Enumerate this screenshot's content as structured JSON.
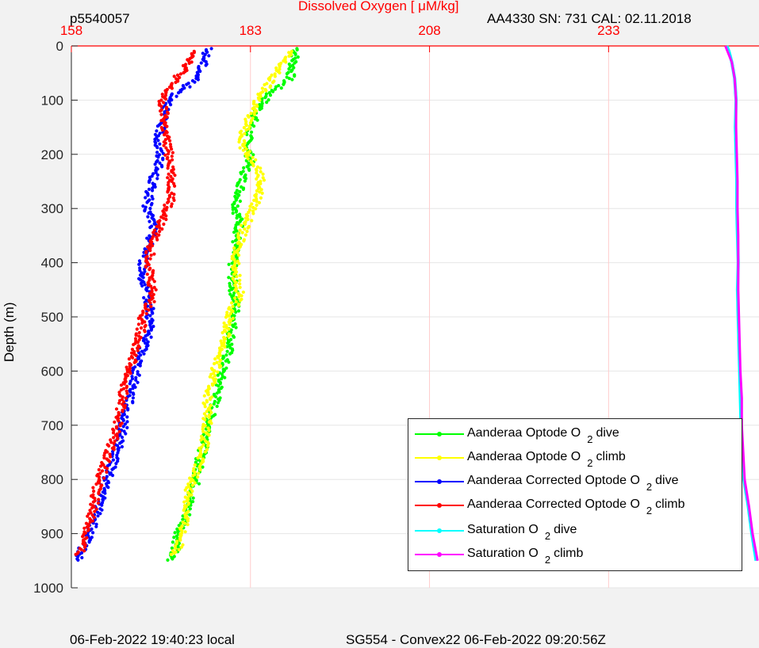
{
  "header": {
    "profile_id": "p5540057",
    "top_right": "AA4330   SN: 731   CAL: 02.11.2018",
    "footer_left": "06-Feb-2022 19:40:23 local",
    "footer_center": "SG554 - Convex22 06-Feb-2022 09:20:56Z"
  },
  "colors": {
    "axis_red": "#ff0000",
    "dive_optode": "#00ff00",
    "climb_optode": "#ffff00",
    "dive_corrected": "#0000ff",
    "climb_corrected": "#ff0000",
    "sat_dive": "#00ffff",
    "sat_climb": "#ff00ff"
  },
  "chart_data": {
    "type": "scatter",
    "title": "Dissolved Oxygen [   μM/kg]",
    "xlabel": "Dissolved Oxygen [   μM/kg]",
    "ylabel": "Depth (m)",
    "xlim": [
      158,
      254
    ],
    "ylim": [
      0,
      1000
    ],
    "y_reversed": true,
    "x_ticks": [
      158,
      183,
      208,
      233
    ],
    "y_ticks": [
      0,
      100,
      200,
      300,
      400,
      500,
      600,
      700,
      800,
      900,
      1000
    ],
    "grid": true,
    "legend_position": "bottom-right",
    "legend": [
      {
        "label": "Aanderaa Optode O",
        "sub": "2",
        "suffix": "dive",
        "color": "#00ff00"
      },
      {
        "label": "Aanderaa Optode O",
        "sub": "2",
        "suffix": "climb",
        "color": "#ffff00"
      },
      {
        "label": "Aanderaa Corrected Optode O",
        "sub": "2",
        "suffix": "dive",
        "color": "#0000ff"
      },
      {
        "label": "Aanderaa Corrected Optode O",
        "sub": "2",
        "suffix": "climb",
        "color": "#ff0000"
      },
      {
        "label": "Saturation O",
        "sub": "2",
        "suffix": "dive",
        "color": "#00ffff"
      },
      {
        "label": "Saturation O",
        "sub": "2",
        "suffix": "climb",
        "color": "#ff00ff"
      }
    ],
    "series": [
      {
        "key": "dive_optode",
        "color": "#00ff00",
        "depth": [
          5,
          30,
          60,
          90,
          120,
          150,
          180,
          210,
          240,
          270,
          300,
          330,
          360,
          400,
          440,
          480,
          520,
          560,
          600,
          640,
          680,
          720,
          760,
          800,
          840,
          870,
          900,
          930,
          950
        ],
        "values": [
          189.5,
          189.0,
          188.5,
          185.5,
          184.0,
          183.0,
          182.5,
          183.0,
          182.0,
          181.5,
          181.0,
          181.5,
          181.0,
          180.5,
          180.5,
          181.0,
          180.5,
          180.0,
          179.0,
          178.5,
          177.5,
          177.0,
          176.0,
          175.5,
          174.5,
          174.0,
          173.0,
          172.5,
          171.5
        ]
      },
      {
        "key": "climb_optode",
        "color": "#ffff00",
        "depth": [
          10,
          40,
          70,
          100,
          130,
          160,
          190,
          220,
          250,
          280,
          310,
          340,
          380,
          420,
          460,
          500,
          540,
          580,
          620,
          660,
          700,
          740,
          780,
          820,
          860,
          900,
          940
        ],
        "values": [
          188.5,
          187.0,
          185.5,
          184.0,
          183.0,
          182.0,
          182.0,
          184.0,
          184.5,
          184.0,
          183.0,
          182.0,
          181.0,
          181.0,
          181.5,
          180.0,
          179.5,
          178.5,
          177.5,
          177.0,
          177.0,
          176.5,
          175.5,
          174.5,
          174.0,
          173.5,
          172.5
        ]
      },
      {
        "key": "dive_corrected",
        "color": "#0000ff",
        "depth": [
          5,
          30,
          60,
          90,
          120,
          150,
          180,
          210,
          240,
          270,
          300,
          330,
          360,
          400,
          440,
          480,
          520,
          560,
          600,
          640,
          680,
          720,
          760,
          800,
          840,
          870,
          900,
          930,
          950
        ],
        "values": [
          177.0,
          176.5,
          175.5,
          172.5,
          171.0,
          170.5,
          170.0,
          170.5,
          169.5,
          169.0,
          168.5,
          169.5,
          169.0,
          168.0,
          168.0,
          169.0,
          169.0,
          168.0,
          167.0,
          166.5,
          165.5,
          165.0,
          164.0,
          163.0,
          162.0,
          161.5,
          160.5,
          159.5,
          159.0
        ]
      },
      {
        "key": "climb_corrected",
        "color": "#ff0000",
        "depth": [
          10,
          40,
          70,
          100,
          130,
          160,
          190,
          220,
          250,
          280,
          310,
          340,
          380,
          420,
          460,
          500,
          540,
          580,
          620,
          660,
          700,
          740,
          780,
          820,
          860,
          900,
          940
        ],
        "values": [
          175.5,
          174.0,
          172.0,
          170.5,
          171.0,
          171.0,
          171.5,
          172.0,
          172.0,
          172.0,
          171.0,
          170.0,
          169.0,
          169.0,
          169.5,
          168.0,
          167.5,
          166.5,
          165.5,
          165.0,
          164.5,
          163.5,
          162.5,
          161.5,
          161.0,
          160.0,
          159.0
        ]
      },
      {
        "key": "sat_dive",
        "color": "#00ffff",
        "depth": [
          0,
          10,
          30,
          60,
          100,
          150,
          200,
          250,
          300,
          350,
          400,
          450,
          500,
          550,
          600,
          650,
          700,
          750,
          800,
          850,
          900,
          950
        ],
        "values": [
          249.5,
          249.8,
          250.2,
          250.6,
          250.8,
          250.7,
          250.8,
          250.9,
          250.9,
          251.0,
          251.1,
          251.0,
          251.1,
          251.2,
          251.3,
          251.4,
          251.5,
          251.6,
          251.9,
          252.5,
          253.0,
          253.6
        ]
      },
      {
        "key": "sat_climb",
        "color": "#ff00ff",
        "depth": [
          0,
          10,
          30,
          60,
          100,
          150,
          200,
          250,
          300,
          350,
          400,
          450,
          500,
          550,
          600,
          650,
          700,
          750,
          800,
          850,
          900,
          950
        ],
        "values": [
          249.3,
          249.6,
          250.2,
          250.6,
          250.8,
          250.8,
          250.9,
          251.0,
          251.0,
          251.1,
          251.1,
          251.1,
          251.2,
          251.3,
          251.4,
          251.6,
          251.6,
          251.8,
          252.0,
          252.6,
          253.1,
          253.8
        ]
      }
    ]
  }
}
